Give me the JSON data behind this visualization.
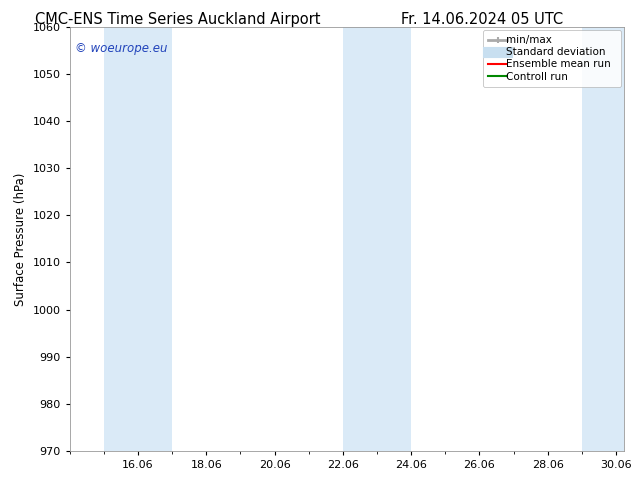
{
  "title_left": "CMC-ENS Time Series Auckland Airport",
  "title_right": "Fr. 14.06.2024 05 UTC",
  "ylabel": "Surface Pressure (hPa)",
  "ylim": [
    970,
    1060
  ],
  "yticks": [
    970,
    980,
    990,
    1000,
    1010,
    1020,
    1030,
    1040,
    1050,
    1060
  ],
  "x_min": 14.0,
  "x_max": 30.25,
  "xtick_labels": [
    "16.06",
    "18.06",
    "20.06",
    "22.06",
    "24.06",
    "26.06",
    "28.06",
    "30.06"
  ],
  "xtick_positions": [
    16,
    18,
    20,
    22,
    24,
    26,
    28,
    30
  ],
  "shaded_bands": [
    {
      "x_start": 15.0,
      "x_end": 17.0
    },
    {
      "x_start": 22.0,
      "x_end": 24.0
    },
    {
      "x_start": 29.0,
      "x_end": 30.25
    }
  ],
  "band_color": "#daeaf7",
  "background_color": "#ffffff",
  "watermark_text": "© woeurope.eu",
  "watermark_color": "#2244bb",
  "legend_items": [
    {
      "label": "min/max",
      "color": "#aaaaaa",
      "lw": 2.0,
      "style": "solid",
      "marker": "|-|"
    },
    {
      "label": "Standard deviation",
      "color": "#c8dff0",
      "lw": 8,
      "style": "solid"
    },
    {
      "label": "Ensemble mean run",
      "color": "#ff0000",
      "lw": 1.5,
      "style": "solid"
    },
    {
      "label": "Controll run",
      "color": "#008800",
      "lw": 1.5,
      "style": "solid"
    }
  ],
  "title_fontsize": 10.5,
  "tick_fontsize": 8,
  "ylabel_fontsize": 8.5,
  "watermark_fontsize": 8.5,
  "legend_fontsize": 7.5
}
